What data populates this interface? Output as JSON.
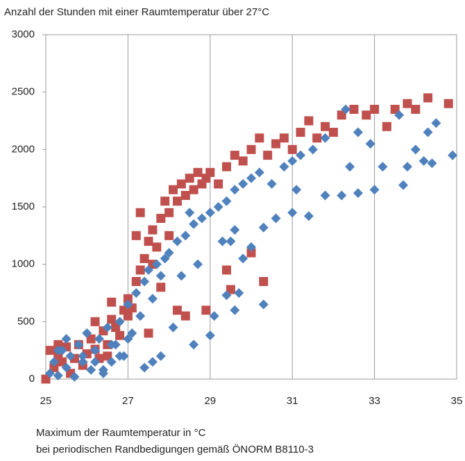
{
  "chart_data": {
    "type": "scatter",
    "ylabel": "Anzahl der Stunden mit einer Raumtemperatur über 27°C",
    "xlabel": [
      "Maximum der Raumtemperatur  in °C",
      "bei periodischen Randbedigungen gemäß ÖNORM B8110-3"
    ],
    "xlim": [
      25,
      35
    ],
    "xticks": [
      25,
      27,
      29,
      31,
      33,
      35
    ],
    "ylim": [
      0,
      3000
    ],
    "yticks": [
      0,
      500,
      1000,
      1500,
      2000,
      2500,
      3000
    ],
    "grid": true,
    "series": [
      {
        "color": "#c0504d",
        "marker": "square",
        "x": [
          25.1,
          25.2,
          25.3,
          25.4,
          25.5,
          25.6,
          25.7,
          25.8,
          25.9,
          26.0,
          26.1,
          26.2,
          26.3,
          26.4,
          26.5,
          26.6,
          26.7,
          26.8,
          26.9,
          27.0,
          27.1,
          27.2,
          27.3,
          27.4,
          27.5,
          27.6,
          27.7,
          27.8,
          27.9,
          28.0,
          28.1,
          28.2,
          28.3,
          28.4,
          28.5,
          28.6,
          28.7,
          28.8,
          28.9,
          29.0,
          29.2,
          29.4,
          29.6,
          29.8,
          30.0,
          30.2,
          30.4,
          30.6,
          30.8,
          31.0,
          31.2,
          31.4,
          31.6,
          31.8,
          32.0,
          32.2,
          32.5,
          32.8,
          33.0,
          33.3,
          33.5,
          33.8,
          34.0,
          34.3,
          34.8,
          27.3,
          27.6,
          28.0,
          27.8,
          28.2,
          28.9,
          29.5,
          29.4,
          30.3,
          30.0,
          27.2,
          26.6,
          27.0,
          27.5,
          28.4,
          26.2,
          25.3,
          25.0,
          26.5
        ],
        "values": [
          250,
          100,
          200,
          150,
          280,
          50,
          180,
          300,
          120,
          220,
          350,
          260,
          180,
          420,
          300,
          520,
          450,
          380,
          600,
          700,
          620,
          850,
          950,
          1050,
          1200,
          1300,
          1150,
          1400,
          1550,
          1450,
          1650,
          1550,
          1700,
          1600,
          1750,
          1650,
          1800,
          1700,
          1750,
          1800,
          1700,
          1850,
          1950,
          1900,
          2000,
          2100,
          1950,
          2050,
          2100,
          2000,
          2150,
          2250,
          2100,
          2200,
          2150,
          2300,
          2350,
          2300,
          2350,
          2200,
          2350,
          2400,
          2350,
          2450,
          2400,
          1450,
          1000,
          1250,
          800,
          600,
          600,
          780,
          950,
          850,
          1100,
          1250,
          670,
          550,
          400,
          550,
          500,
          300,
          0,
          200
        ]
      },
      {
        "color": "#4f81bd",
        "marker": "diamond",
        "x": [
          25.1,
          25.2,
          25.3,
          25.4,
          25.5,
          25.6,
          25.7,
          25.8,
          25.9,
          26.0,
          26.1,
          26.2,
          26.3,
          26.4,
          26.5,
          26.6,
          26.7,
          26.8,
          26.9,
          27.0,
          27.1,
          27.2,
          27.3,
          27.4,
          27.5,
          27.6,
          27.7,
          27.8,
          27.9,
          28.0,
          28.2,
          28.4,
          28.6,
          28.8,
          29.0,
          29.2,
          29.4,
          29.6,
          29.8,
          30.0,
          30.2,
          30.5,
          30.8,
          31.0,
          31.2,
          31.5,
          31.8,
          32.3,
          32.6,
          32.9,
          33.2,
          33.6,
          34.0,
          34.3,
          34.5,
          34.9,
          34.2,
          34.4,
          33.8,
          33.0,
          33.7,
          32.6,
          32.2,
          31.8,
          31.4,
          31.0,
          30.6,
          30.3,
          30.0,
          29.8,
          29.6,
          29.3,
          29.7,
          29.6,
          30.3,
          29.4,
          29.1,
          29.0,
          28.6,
          28.1,
          27.8,
          27.6,
          27.4,
          27.0,
          26.8,
          26.6,
          26.4,
          26.2,
          25.9,
          25.5,
          25.3,
          28.5,
          28.3,
          28.7,
          31.1,
          32.4,
          29.5
        ],
        "values": [
          50,
          150,
          30,
          250,
          100,
          200,
          20,
          300,
          150,
          400,
          80,
          250,
          350,
          50,
          450,
          150,
          300,
          500,
          200,
          650,
          400,
          750,
          550,
          850,
          950,
          700,
          1000,
          900,
          1050,
          1100,
          1200,
          1250,
          1350,
          1400,
          1450,
          1500,
          1550,
          1650,
          1700,
          1750,
          1800,
          1700,
          1850,
          1900,
          1950,
          2000,
          2100,
          2350,
          2150,
          2050,
          1850,
          2300,
          2000,
          2150,
          2230,
          1950,
          1900,
          1880,
          1850,
          1650,
          1690,
          1620,
          1600,
          1600,
          1420,
          1450,
          1400,
          1320,
          1150,
          1050,
          1300,
          1200,
          750,
          600,
          650,
          730,
          550,
          380,
          300,
          450,
          200,
          150,
          100,
          350,
          200,
          300,
          80,
          150,
          200,
          350,
          250,
          1450,
          900,
          1000,
          1650,
          1850,
          1200
        ]
      }
    ]
  }
}
